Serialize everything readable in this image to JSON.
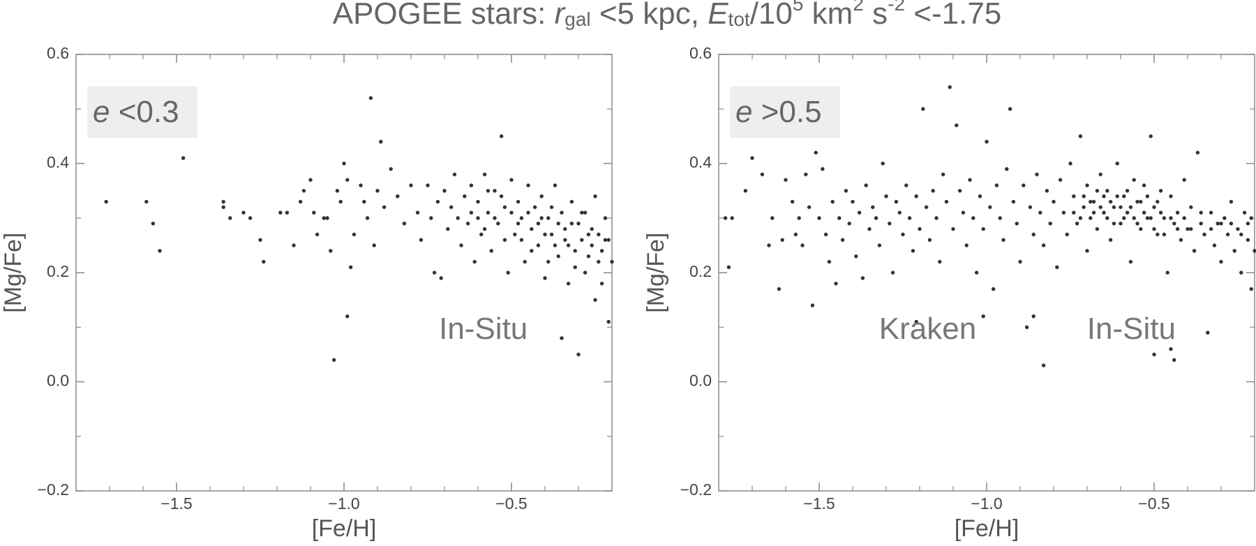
{
  "suptitle": [
    "APOGEE stars: ",
    "r",
    "gal",
    " <5 kpc, ",
    "E",
    "tot",
    "/10",
    "5",
    " km",
    "2",
    " s",
    "-2",
    " <-1.75"
  ],
  "chart_data": [
    {
      "type": "scatter",
      "xlabel": "[Fe/H]",
      "ylabel": "[Mg/Fe]",
      "color": "#333333",
      "inset_label": [
        "e",
        " <0.3"
      ],
      "annotations": [
        "In-Situ"
      ],
      "xlim": [
        -1.8,
        -0.2
      ],
      "ylim": [
        -0.2,
        0.6
      ],
      "xticks": [
        {
          "value": -1.5,
          "label": "−1.5"
        },
        {
          "value": -1.0,
          "label": "−1.0"
        },
        {
          "value": -0.5,
          "label": "−0.5"
        }
      ],
      "xminorticks": [
        -1.7,
        -1.6,
        -1.4,
        -1.3,
        -1.2,
        -1.1,
        -0.9,
        -0.8,
        -0.7,
        -0.6,
        -0.4,
        -0.3
      ],
      "yticks": [
        {
          "value": -0.2,
          "label": "−0.2"
        },
        {
          "value": 0,
          "label": "0.0"
        },
        0.2,
        0.4,
        0.6
      ],
      "yminorticks": [
        -0.1,
        0.1,
        0.3,
        0.5
      ],
      "x": [
        -1.71,
        -1.59,
        -1.57,
        -1.55,
        -1.48,
        -1.36,
        -1.36,
        -1.34,
        -1.3,
        -1.28,
        -1.25,
        -1.24,
        -1.19,
        -1.17,
        -1.15,
        -1.13,
        -1.12,
        -1.1,
        -1.09,
        -1.08,
        -1.06,
        -1.05,
        -1.04,
        -1.03,
        -1.02,
        -1.01,
        -1.0,
        -0.99,
        -0.99,
        -0.98,
        -0.97,
        -0.95,
        -0.94,
        -0.93,
        -0.92,
        -0.91,
        -0.9,
        -0.89,
        -0.88,
        -0.86,
        -0.84,
        -0.82,
        -0.8,
        -0.78,
        -0.77,
        -0.75,
        -0.74,
        -0.73,
        -0.72,
        -0.71,
        -0.7,
        -0.69,
        -0.68,
        -0.67,
        -0.66,
        -0.65,
        -0.64,
        -0.63,
        -0.62,
        -0.61,
        -0.6,
        -0.59,
        -0.58,
        -0.57,
        -0.56,
        -0.55,
        -0.54,
        -0.53,
        -0.52,
        -0.51,
        -0.5,
        -0.49,
        -0.48,
        -0.47,
        -0.46,
        -0.45,
        -0.44,
        -0.43,
        -0.42,
        -0.41,
        -0.4,
        -0.39,
        -0.38,
        -0.37,
        -0.36,
        -0.35,
        -0.35,
        -0.34,
        -0.33,
        -0.32,
        -0.31,
        -0.3,
        -0.3,
        -0.29,
        -0.28,
        -0.27,
        -0.26,
        -0.25,
        -0.25,
        -0.24,
        -0.23,
        -0.22,
        -0.21,
        -0.21,
        -0.2,
        -0.62,
        -0.58,
        -0.55,
        -0.52,
        -0.48,
        -0.45,
        -0.42,
        -0.4,
        -0.38,
        -0.36,
        -0.34,
        -0.32,
        -0.29,
        -0.27,
        -0.24,
        -0.22,
        -0.44,
        -0.47,
        -0.5,
        -0.53,
        -0.57,
        -0.6,
        -0.39,
        -0.33,
        -0.28,
        -0.23,
        -0.37,
        -0.31,
        -0.26,
        -0.41
      ],
      "values": [
        0.33,
        0.33,
        0.29,
        0.24,
        0.41,
        0.32,
        0.33,
        0.3,
        0.31,
        0.3,
        0.26,
        0.22,
        0.31,
        0.31,
        0.25,
        0.33,
        0.35,
        0.37,
        0.31,
        0.27,
        0.3,
        0.3,
        0.24,
        0.04,
        0.35,
        0.33,
        0.4,
        0.12,
        0.37,
        0.21,
        0.27,
        0.36,
        0.33,
        0.3,
        0.52,
        0.25,
        0.35,
        0.44,
        0.32,
        0.39,
        0.34,
        0.29,
        0.36,
        0.31,
        0.26,
        0.36,
        0.3,
        0.2,
        0.33,
        0.19,
        0.35,
        0.28,
        0.32,
        0.38,
        0.3,
        0.25,
        0.34,
        0.29,
        0.36,
        0.22,
        0.33,
        0.27,
        0.38,
        0.31,
        0.24,
        0.35,
        0.29,
        0.45,
        0.32,
        0.2,
        0.37,
        0.27,
        0.33,
        0.3,
        0.22,
        0.36,
        0.28,
        0.32,
        0.25,
        0.34,
        0.19,
        0.3,
        0.27,
        0.36,
        0.23,
        0.08,
        0.31,
        0.28,
        0.25,
        0.33,
        0.21,
        0.05,
        0.29,
        0.26,
        0.31,
        0.23,
        0.28,
        0.15,
        0.34,
        0.27,
        0.24,
        0.3,
        0.11,
        0.26,
        0.22,
        0.31,
        0.28,
        0.3,
        0.26,
        0.29,
        0.31,
        0.29,
        0.27,
        0.32,
        0.29,
        0.26,
        0.29,
        0.31,
        0.27,
        0.22,
        0.26,
        0.24,
        0.26,
        0.31,
        0.34,
        0.35,
        0.3,
        0.22,
        0.18,
        0.2,
        0.18,
        0.25,
        0.24,
        0.25,
        0.3
      ]
    },
    {
      "type": "scatter",
      "xlabel": "[Fe/H]",
      "ylabel": "[Mg/Fe]",
      "color": "#333333",
      "inset_label": [
        "e",
        " >0.5"
      ],
      "annotations": [
        "Kraken",
        "In-Situ"
      ],
      "xlim": [
        -1.8,
        -0.2
      ],
      "ylim": [
        -0.2,
        0.6
      ],
      "xticks": [
        {
          "value": -1.5,
          "label": "−1.5"
        },
        {
          "value": -1.0,
          "label": "−1.0"
        },
        {
          "value": -0.5,
          "label": "−0.5"
        }
      ],
      "xminorticks": [
        -1.7,
        -1.6,
        -1.4,
        -1.3,
        -1.2,
        -1.1,
        -0.9,
        -0.8,
        -0.7,
        -0.6,
        -0.4,
        -0.3
      ],
      "yticks": [
        {
          "value": -0.2,
          "label": "−0.2"
        },
        {
          "value": 0,
          "label": "0.0"
        },
        0.2,
        0.4,
        0.6
      ],
      "yminorticks": [
        -0.1,
        0.1,
        0.3,
        0.5
      ],
      "x": [
        -1.78,
        -1.77,
        -1.76,
        -1.72,
        -1.7,
        -1.67,
        -1.65,
        -1.64,
        -1.62,
        -1.61,
        -1.6,
        -1.58,
        -1.57,
        -1.56,
        -1.55,
        -1.54,
        -1.53,
        -1.52,
        -1.51,
        -1.5,
        -1.49,
        -1.48,
        -1.47,
        -1.46,
        -1.45,
        -1.44,
        -1.43,
        -1.42,
        -1.41,
        -1.4,
        -1.39,
        -1.38,
        -1.37,
        -1.36,
        -1.35,
        -1.34,
        -1.33,
        -1.32,
        -1.31,
        -1.3,
        -1.29,
        -1.28,
        -1.27,
        -1.26,
        -1.25,
        -1.24,
        -1.23,
        -1.22,
        -1.21,
        -1.2,
        -1.19,
        -1.18,
        -1.17,
        -1.16,
        -1.15,
        -1.14,
        -1.13,
        -1.12,
        -1.11,
        -1.1,
        -1.09,
        -1.08,
        -1.07,
        -1.06,
        -1.05,
        -1.04,
        -1.03,
        -1.02,
        -1.01,
        -1.0,
        -0.99,
        -0.98,
        -0.97,
        -0.96,
        -0.95,
        -0.94,
        -0.93,
        -0.92,
        -0.91,
        -0.9,
        -0.89,
        -0.88,
        -0.87,
        -0.86,
        -0.85,
        -0.84,
        -0.83,
        -0.83,
        -0.82,
        -0.81,
        -0.8,
        -0.79,
        -0.78,
        -0.77,
        -0.76,
        -0.75,
        -0.74,
        -0.73,
        -0.72,
        -0.71,
        -0.7,
        -0.7,
        -0.69,
        -0.68,
        -0.67,
        -0.66,
        -0.65,
        -0.64,
        -0.63,
        -0.62,
        -0.61,
        -0.6,
        -0.59,
        -0.58,
        -0.57,
        -0.56,
        -0.55,
        -0.54,
        -0.53,
        -0.52,
        -0.51,
        -0.5,
        -0.49,
        -0.48,
        -0.47,
        -0.46,
        -0.45,
        -0.44,
        -0.43,
        -0.42,
        -0.41,
        -0.4,
        -0.39,
        -0.38,
        -0.37,
        -0.36,
        -0.35,
        -0.34,
        -0.33,
        -0.32,
        -0.31,
        -0.3,
        -0.29,
        -0.28,
        -0.27,
        -0.26,
        -0.25,
        -0.24,
        -0.23,
        -0.22,
        -0.21,
        -0.21,
        -0.2,
        -0.74,
        -0.72,
        -0.71,
        -0.69,
        -0.68,
        -0.67,
        -0.66,
        -0.65,
        -0.64,
        -0.63,
        -0.62,
        -0.61,
        -0.6,
        -0.59,
        -0.58,
        -0.57,
        -0.56,
        -0.55,
        -0.54,
        -0.53,
        -0.52,
        -0.51,
        -0.5,
        -0.49,
        -0.48,
        -0.47,
        -0.45,
        -0.43,
        -0.41,
        -0.39,
        -0.36,
        -0.33,
        -0.3,
        -0.27,
        -0.24,
        -0.22,
        -0.44,
        -0.5,
        -0.86,
        -1.01,
        -1.21,
        -0.45
      ],
      "values": [
        0.3,
        0.21,
        0.3,
        0.35,
        0.41,
        0.38,
        0.25,
        0.3,
        0.17,
        0.26,
        0.37,
        0.33,
        0.27,
        0.3,
        0.25,
        0.38,
        0.32,
        0.14,
        0.42,
        0.3,
        0.39,
        0.27,
        0.22,
        0.33,
        0.18,
        0.3,
        0.26,
        0.35,
        0.29,
        0.33,
        0.23,
        0.31,
        0.19,
        0.36,
        0.28,
        0.32,
        0.3,
        0.25,
        0.4,
        0.34,
        0.29,
        0.2,
        0.33,
        0.31,
        0.27,
        0.36,
        0.3,
        0.24,
        0.34,
        0.28,
        0.5,
        0.32,
        0.26,
        0.35,
        0.3,
        0.22,
        0.38,
        0.33,
        0.54,
        0.28,
        0.47,
        0.35,
        0.31,
        0.25,
        0.37,
        0.3,
        0.2,
        0.34,
        0.28,
        0.44,
        0.32,
        0.17,
        0.36,
        0.3,
        0.26,
        0.39,
        0.5,
        0.33,
        0.29,
        0.22,
        0.36,
        0.1,
        0.32,
        0.27,
        0.38,
        0.31,
        0.03,
        0.25,
        0.35,
        0.29,
        0.33,
        0.21,
        0.37,
        0.31,
        0.27,
        0.4,
        0.34,
        0.29,
        0.45,
        0.32,
        0.24,
        0.36,
        0.3,
        0.33,
        0.28,
        0.38,
        0.31,
        0.35,
        0.26,
        0.32,
        0.4,
        0.29,
        0.34,
        0.31,
        0.22,
        0.37,
        0.33,
        0.28,
        0.36,
        0.3,
        0.45,
        0.32,
        0.27,
        0.35,
        0.3,
        0.2,
        0.34,
        0.29,
        0.31,
        0.26,
        0.37,
        0.28,
        0.32,
        0.24,
        0.42,
        0.29,
        0.27,
        0.09,
        0.31,
        0.25,
        0.29,
        0.22,
        0.3,
        0.27,
        0.33,
        0.24,
        0.28,
        0.2,
        0.31,
        0.26,
        0.17,
        0.3,
        0.24,
        0.31,
        0.3,
        0.34,
        0.33,
        0.31,
        0.35,
        0.32,
        0.34,
        0.3,
        0.33,
        0.29,
        0.34,
        0.32,
        0.3,
        0.35,
        0.32,
        0.3,
        0.29,
        0.33,
        0.31,
        0.34,
        0.3,
        0.28,
        0.33,
        0.31,
        0.27,
        0.3,
        0.28,
        0.3,
        0.28,
        0.31,
        0.28,
        0.29,
        0.29,
        0.27,
        0.29,
        0.04,
        0.05,
        0.12,
        0.12,
        0.11,
        0.06
      ]
    }
  ]
}
